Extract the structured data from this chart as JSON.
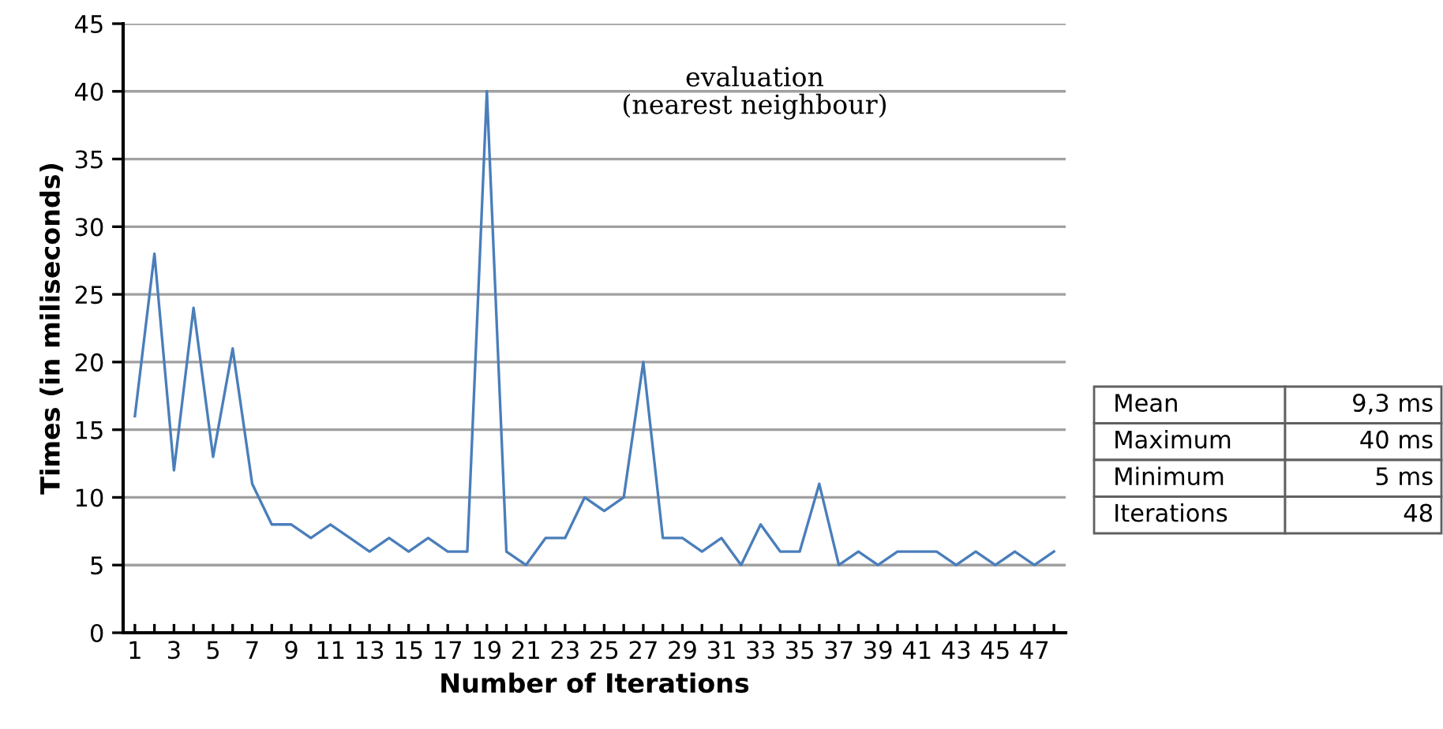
{
  "chart_data": {
    "type": "line",
    "title": "evaluation\n(nearest neighbour)",
    "xlabel": "Number of Iterations",
    "ylabel": "Times (in miliseconds)",
    "categories": [
      "1",
      null,
      "3",
      null,
      "5",
      null,
      "7",
      null,
      "9",
      null,
      "11",
      null,
      "13",
      null,
      "15",
      null,
      "17",
      null,
      "19",
      null,
      "21",
      null,
      "23",
      null,
      "25",
      null,
      "27",
      null,
      "29",
      null,
      "31",
      null,
      "33",
      null,
      "35",
      null,
      "37",
      null,
      "39",
      null,
      "41",
      null,
      "43",
      null,
      "45",
      null,
      "47",
      null
    ],
    "series": [
      {
        "color": "#4a7ebb",
        "values": [
          16,
          28,
          12,
          24,
          13,
          21,
          11,
          8,
          8,
          7,
          8,
          7,
          6,
          7,
          6,
          7,
          6,
          6,
          40,
          6,
          5,
          7,
          7,
          10,
          9,
          10,
          20,
          7,
          7,
          6,
          7,
          5,
          8,
          6,
          6,
          11,
          5,
          6,
          5,
          6,
          6,
          6,
          5,
          6,
          5,
          6,
          5,
          6
        ]
      }
    ],
    "ylim": [
      0,
      45
    ],
    "yticks": [
      0,
      5,
      10,
      15,
      20,
      25,
      30,
      35,
      40,
      45
    ],
    "grid": "y",
    "legend": false,
    "marker": "none",
    "line_style": "solid",
    "annotations": [
      "Mean",
      "9,3 ms",
      "Maximum",
      "40 ms",
      "Minimum",
      "5 ms",
      "Iterations",
      "48"
    ]
  }
}
